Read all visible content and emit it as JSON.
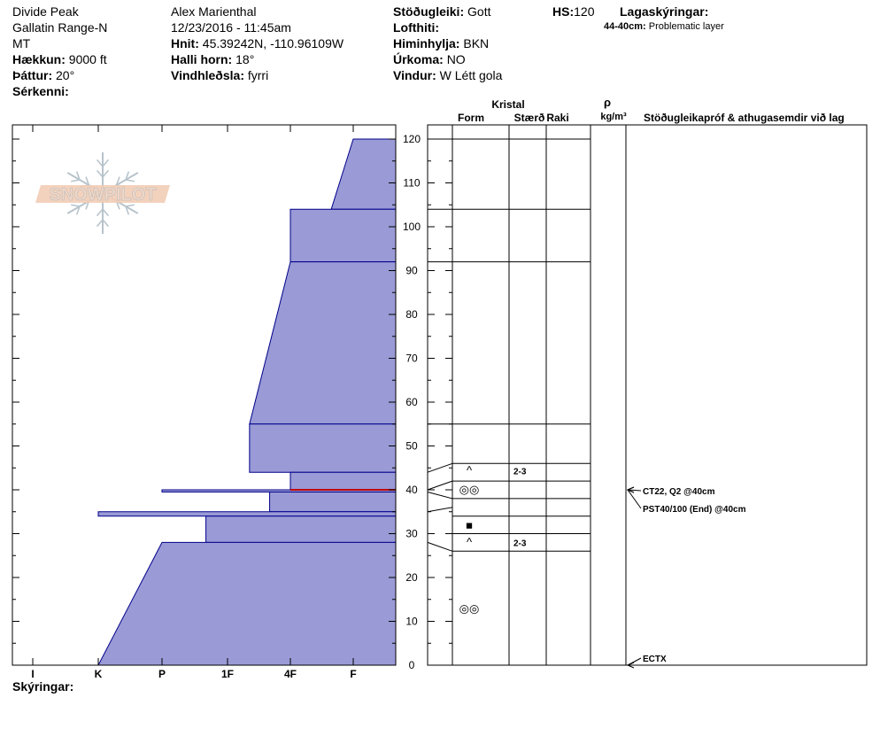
{
  "header": {
    "col1": {
      "location": "Divide Peak",
      "range": "Gallatin Range-N",
      "state": "MT",
      "elevation_label": "Hækkun:",
      "elevation_value": "9000 ft",
      "aspect_label": "Þáttur:",
      "aspect_value": "20°",
      "features_label": "Sérkenni:",
      "features_value": ""
    },
    "col2": {
      "observer": "Alex Marienthal",
      "datetime": "12/23/2016 - 11:45am",
      "coords_label": "Hnit:",
      "coords_value": "45.39242N, -110.96109W",
      "slope_label": "Halli horn:",
      "slope_value": "18°",
      "wind_loading_label": "Vindhleðsla:",
      "wind_loading_value": "fyrri"
    },
    "col3": {
      "stability_label": "Stöðugleiki:",
      "stability_value": "Gott",
      "air_temp_label": "Lofthiti:",
      "air_temp_value": "",
      "sky_label": "Himinhylja:",
      "sky_value": "BKN",
      "precip_label": "Úrkoma:",
      "precip_value": "NO",
      "wind_label": "Vindur:",
      "wind_value": "W Létt gola"
    },
    "hs_label": "HS:",
    "hs_value": "120",
    "layer_notes_label": "Lagaskýringar:",
    "layer_note_depth": "44-40cm:",
    "layer_note_text": "Problematic layer"
  },
  "logo_text": "SNOWPILOT",
  "footer_label": "Skýringar:",
  "columns": {
    "kristal": "Kristal",
    "form": "Form",
    "size": "Stærð",
    "moisture": "Raki",
    "rho": "ρ",
    "density_unit": "kg/m³",
    "comments": "Stöðugleikapróf & athugasemdir við lag"
  },
  "colors": {
    "hardness_fill": "#9a9ad6",
    "hardness_stroke": "#00008b",
    "problem_layer": "#c00000"
  },
  "chart_data": {
    "type": "snow_profile",
    "x_axis_ticks": [
      "I",
      "K",
      "P",
      "1F",
      "4F",
      "F"
    ],
    "y_axis": {
      "min": 0,
      "max": 120,
      "step": 10,
      "unit": "cm"
    },
    "y_ticks": [
      "0",
      "10",
      "20",
      "30",
      "40",
      "50",
      "60",
      "70",
      "80",
      "90",
      "100",
      "110",
      "120"
    ],
    "hardness_layers": [
      {
        "top": 120,
        "bottom": 104,
        "hardness_top": 5.0,
        "hardness_bottom": 4.65
      },
      {
        "top": 104,
        "bottom": 92,
        "hardness_top": 4.0,
        "hardness_bottom": 4.0
      },
      {
        "top": 92,
        "bottom": 55,
        "hardness_top": 4.0,
        "hardness_bottom": 3.35
      },
      {
        "top": 55,
        "bottom": 44,
        "hardness_top": 3.35,
        "hardness_bottom": 3.35
      },
      {
        "top": 44,
        "bottom": 40,
        "hardness_top": 4.0,
        "hardness_bottom": 4.0
      },
      {
        "top": 40,
        "bottom": 39.5,
        "hardness_top": 2.0,
        "hardness_bottom": 2.0
      },
      {
        "top": 39.5,
        "bottom": 35,
        "hardness_top": 3.67,
        "hardness_bottom": 3.67
      },
      {
        "top": 35,
        "bottom": 34,
        "hardness_top": 1.0,
        "hardness_bottom": 1.0
      },
      {
        "top": 34,
        "bottom": 28,
        "hardness_top": 2.67,
        "hardness_bottom": 2.67
      },
      {
        "top": 28,
        "bottom": 0,
        "hardness_top": 2.0,
        "hardness_bottom": 1.0
      }
    ],
    "problem_layer_depth": 40,
    "layer_boundaries_right": [
      120,
      104,
      92,
      55,
      46,
      42,
      38,
      34,
      30,
      26
    ],
    "boundary_map": [
      {
        "actual": 120,
        "display": 120
      },
      {
        "actual": 104,
        "display": 104
      },
      {
        "actual": 92,
        "display": 92
      },
      {
        "actual": 55,
        "display": 55
      },
      {
        "actual": 44,
        "display": 46
      },
      {
        "actual": 40,
        "display": 42
      },
      {
        "actual": 39.5,
        "display": 38
      },
      {
        "actual": 35,
        "display": 36
      },
      {
        "actual": 34,
        "display": 34
      },
      {
        "actual": 30,
        "display": 30
      },
      {
        "actual": 28,
        "display": 26
      }
    ],
    "grains": [
      {
        "depth": 44.3,
        "symbol": "^",
        "size": "2-3"
      },
      {
        "depth": 40,
        "symbol": "◎◎",
        "size": ""
      },
      {
        "depth": 31.8,
        "symbol": "■",
        "size": ""
      },
      {
        "depth": 28,
        "symbol": "^",
        "size": "2-3"
      },
      {
        "depth": 12.8,
        "symbol": "◎◎",
        "size": ""
      }
    ],
    "tests": [
      {
        "depth": 40,
        "text": "CT22, Q2 @40cm"
      },
      {
        "depth": 40,
        "text": "PST40/100 (End) @40cm"
      },
      {
        "depth": 0,
        "text": "ECTX"
      }
    ]
  }
}
